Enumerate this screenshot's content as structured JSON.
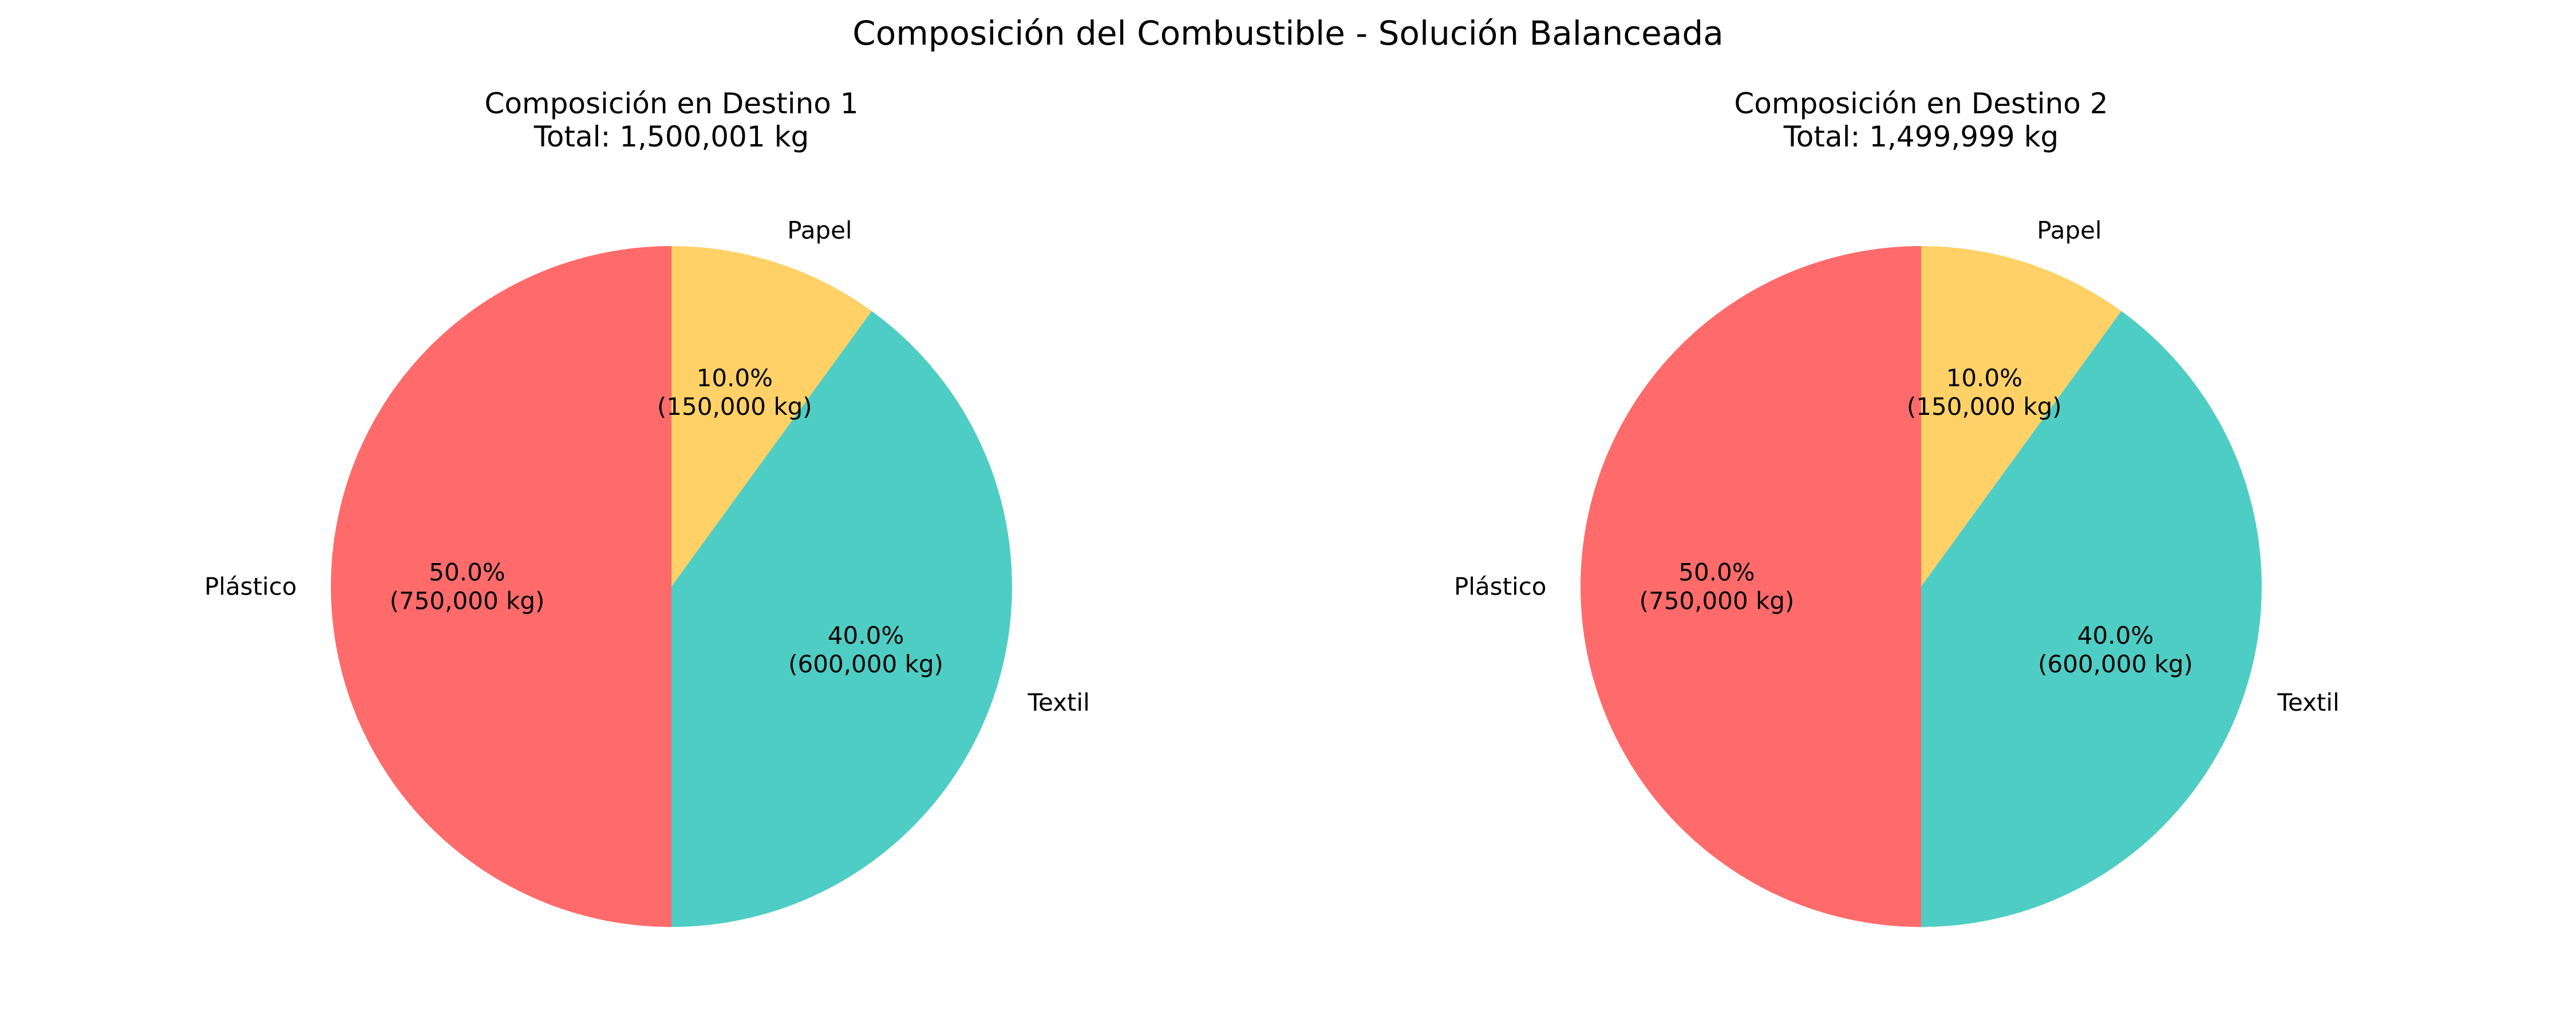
{
  "figure": {
    "title": "Composición del Combustible - Solución Balanceada"
  },
  "chart_data": [
    {
      "type": "pie",
      "title": "Composición en Destino 1",
      "subtitle": "Total: 1,500,001 kg",
      "start_angle_deg": 90,
      "direction": "clockwise",
      "slices": [
        {
          "label": "Papel",
          "value": 150000,
          "percent_text": "10.0%",
          "value_text": "(150,000 kg)",
          "color": "#FFD166"
        },
        {
          "label": "Textil",
          "value": 600000,
          "percent_text": "40.0%",
          "value_text": "(600,000 kg)",
          "color": "#4ECDC4"
        },
        {
          "label": "Plástico",
          "value": 750000,
          "percent_text": "50.0%",
          "value_text": "(750,000 kg)",
          "color": "#FF6B6B"
        }
      ]
    },
    {
      "type": "pie",
      "title": "Composición en Destino 2",
      "subtitle": "Total: 1,499,999 kg",
      "start_angle_deg": 90,
      "direction": "clockwise",
      "slices": [
        {
          "label": "Papel",
          "value": 150000,
          "percent_text": "10.0%",
          "value_text": "(150,000 kg)",
          "color": "#FFD166"
        },
        {
          "label": "Textil",
          "value": 600000,
          "percent_text": "40.0%",
          "value_text": "(600,000 kg)",
          "color": "#4ECDC4"
        },
        {
          "label": "Plástico",
          "value": 750000,
          "percent_text": "50.0%",
          "value_text": "(750,000 kg)",
          "color": "#FF6B6B"
        }
      ]
    }
  ]
}
